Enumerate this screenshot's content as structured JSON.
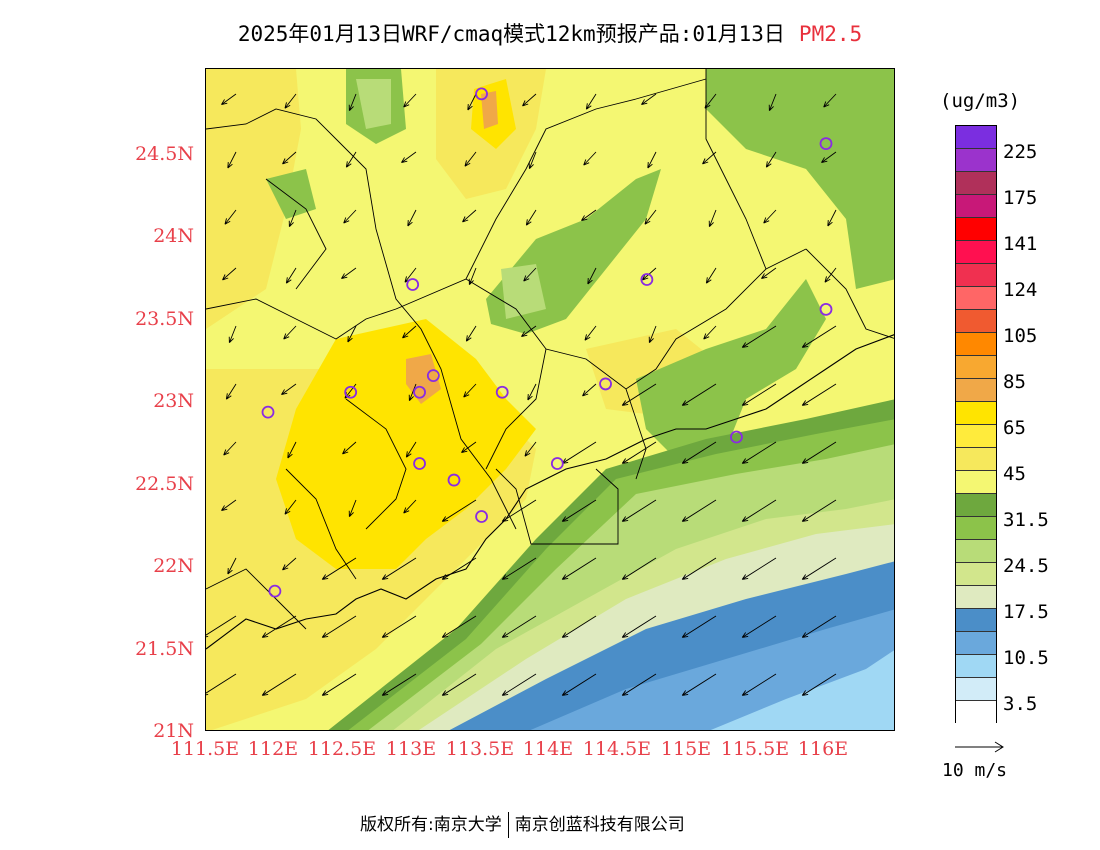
{
  "title": {
    "main": "2025年01月13日WRF/cmaq模式12km预报产品:01月13日",
    "species": "PM2.5"
  },
  "colorbar": {
    "unit": "(ug/m3)",
    "colors": [
      "#7b2ee0",
      "#9b33cc",
      "#b0305a",
      "#c81878",
      "#ff0000",
      "#ff1050",
      "#f03050",
      "#ff6666",
      "#f05a30",
      "#ff8800",
      "#f8a830",
      "#f0a848",
      "#ffe400",
      "#ffeb3c",
      "#f6e85c",
      "#f4f772",
      "#6ea83e",
      "#8cc34a",
      "#b8dc78",
      "#d2e68c",
      "#dfeac0",
      "#4b8ec8",
      "#6aa8dc",
      "#a0d8f4",
      "#d2ecf8",
      "#ffffff"
    ],
    "labels": [
      "225",
      "175",
      "141",
      "124",
      "105",
      "85",
      "65",
      "45",
      "31.5",
      "24.5",
      "17.5",
      "10.5",
      "3.5"
    ]
  },
  "axes": {
    "lon_ticks": [
      "111.5E",
      "112E",
      "112.5E",
      "113E",
      "113.5E",
      "114E",
      "114.5E",
      "115E",
      "115.5E",
      "116E"
    ],
    "lat_ticks": [
      "24.5N",
      "24N",
      "23.5N",
      "23N",
      "22.5N",
      "22N",
      "21.5N",
      "21N"
    ]
  },
  "map": {
    "extent": {
      "lon": [
        111.5,
        116.0
      ],
      "lat": [
        21.0,
        25.0
      ]
    },
    "stations": [
      {
        "lon": 113.5,
        "lat": 24.85
      },
      {
        "lon": 116.0,
        "lat": 24.55
      },
      {
        "lon": 113.0,
        "lat": 23.7
      },
      {
        "lon": 114.7,
        "lat": 23.73
      },
      {
        "lon": 116.0,
        "lat": 23.55
      },
      {
        "lon": 113.15,
        "lat": 23.15
      },
      {
        "lon": 113.05,
        "lat": 23.05
      },
      {
        "lon": 112.55,
        "lat": 23.05
      },
      {
        "lon": 111.95,
        "lat": 22.93
      },
      {
        "lon": 113.65,
        "lat": 23.05
      },
      {
        "lon": 114.4,
        "lat": 23.1
      },
      {
        "lon": 113.05,
        "lat": 22.62
      },
      {
        "lon": 113.3,
        "lat": 22.52
      },
      {
        "lon": 114.05,
        "lat": 22.62
      },
      {
        "lon": 113.5,
        "lat": 22.3
      },
      {
        "lon": 115.35,
        "lat": 22.78
      },
      {
        "lon": 112.0,
        "lat": 21.85
      }
    ]
  },
  "wind_key": {
    "label": "10 m/s"
  },
  "footer": {
    "copyright": "版权所有:南京大学",
    "partner": "南京创蓝科技有限公司"
  }
}
